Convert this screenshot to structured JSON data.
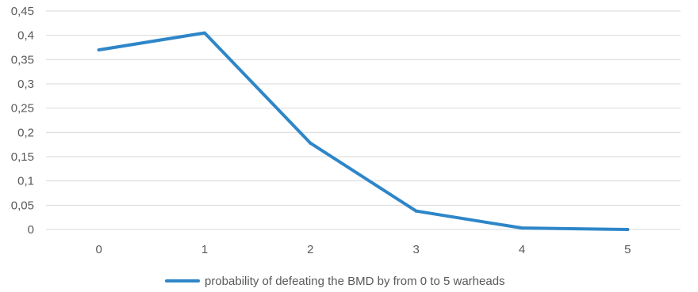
{
  "chart_data": {
    "type": "line",
    "categories": [
      "0",
      "1",
      "2",
      "3",
      "4",
      "5"
    ],
    "series": [
      {
        "name": "probability of defeating the BMD by from 0 to 5 warheads",
        "values": [
          0.37,
          0.405,
          0.178,
          0.038,
          0.003,
          0.0
        ],
        "color": "#2e86c8"
      }
    ],
    "y_ticks": [
      "0",
      "0,05",
      "0,1",
      "0,15",
      "0,2",
      "0,25",
      "0,3",
      "0,35",
      "0,4",
      "0,45"
    ],
    "ylim": [
      0,
      0.45
    ],
    "grid": true,
    "legend": "bottom"
  }
}
